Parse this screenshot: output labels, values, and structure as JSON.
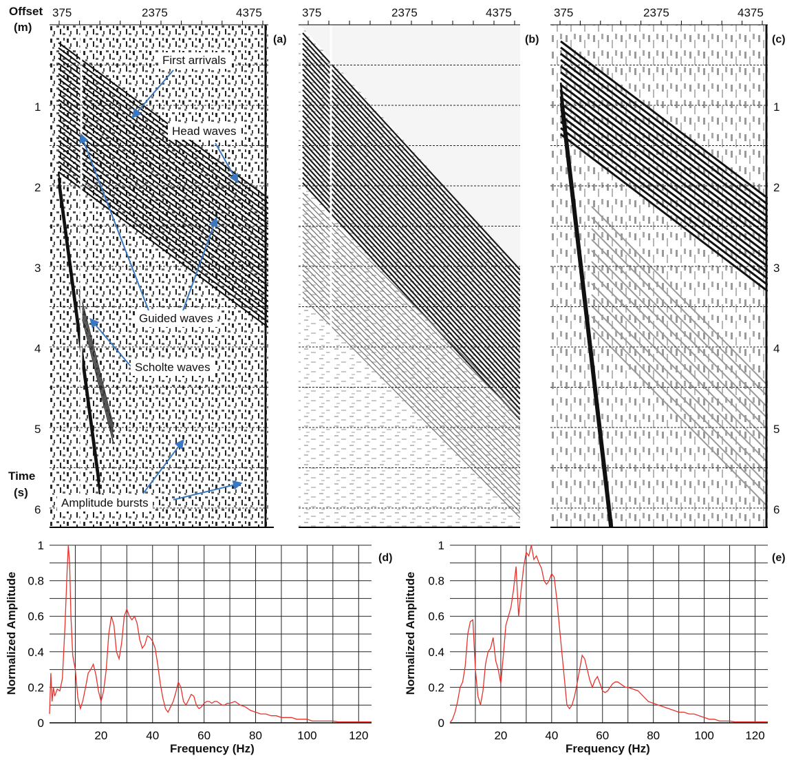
{
  "seismic": {
    "offset_label": [
      "Offset",
      "(m)"
    ],
    "time_label": [
      "Time",
      "(s)"
    ],
    "offset_ticks": [
      "375",
      "2375",
      "4375"
    ],
    "time_ticks": [
      "1",
      "2",
      "3",
      "4",
      "5",
      "6"
    ],
    "panels": [
      "(a)",
      "(b)",
      "(c)"
    ],
    "annotations": {
      "first_arrivals": "First arrivals",
      "head_waves": "Head waves",
      "guided_waves": "Guided waves",
      "scholte_waves": "Scholte waves",
      "amplitude_bursts": "Amplitude bursts"
    },
    "arrow_color": "#3a78c2"
  },
  "chart_data": [
    {
      "type": "line",
      "panel": "(d)",
      "xlabel": "Frequency (Hz)",
      "ylabel": "Normalized Amplitude",
      "xlim": [
        0,
        125
      ],
      "ylim": [
        0,
        1
      ],
      "xticks": [
        20,
        40,
        60,
        80,
        100,
        120
      ],
      "yticks": [
        0,
        0.2,
        0.4,
        0.6,
        0.8,
        1
      ],
      "ytick_labels": [
        "0",
        "0.2",
        "0.4",
        "0.6",
        "0.8",
        "1"
      ],
      "grid": true,
      "color": "#e8302a",
      "series": [
        {
          "x": [
            0,
            0.5,
            1,
            1.5,
            2,
            3,
            4,
            5,
            6,
            6.8,
            7.3,
            7.8,
            8.3,
            9,
            10,
            11,
            12,
            13,
            14,
            15,
            16,
            17,
            18,
            19,
            20,
            21,
            22,
            23,
            24,
            25,
            26,
            27,
            28,
            29,
            30,
            31,
            32,
            33,
            34,
            35,
            36,
            37,
            38,
            39,
            40,
            41,
            42,
            43,
            44,
            45,
            46,
            47,
            48,
            49,
            50,
            51,
            52,
            53,
            54,
            55,
            56,
            57,
            58,
            59,
            60,
            61,
            62,
            63,
            64,
            65,
            66,
            67,
            68,
            69,
            70,
            72,
            74,
            76,
            78,
            80,
            82,
            84,
            86,
            88,
            90,
            92,
            94,
            96,
            98,
            100,
            102,
            104,
            106,
            108,
            110,
            112,
            114,
            116,
            118,
            120,
            122,
            124,
            125
          ],
          "values": [
            0.05,
            0.28,
            0.12,
            0.2,
            0.15,
            0.19,
            0.18,
            0.25,
            0.55,
            0.85,
            1.0,
            0.9,
            0.6,
            0.38,
            0.3,
            0.14,
            0.08,
            0.13,
            0.2,
            0.28,
            0.3,
            0.33,
            0.27,
            0.18,
            0.12,
            0.18,
            0.3,
            0.5,
            0.6,
            0.55,
            0.4,
            0.36,
            0.45,
            0.6,
            0.64,
            0.6,
            0.58,
            0.6,
            0.56,
            0.47,
            0.42,
            0.44,
            0.49,
            0.48,
            0.46,
            0.42,
            0.33,
            0.22,
            0.14,
            0.08,
            0.06,
            0.09,
            0.12,
            0.17,
            0.23,
            0.2,
            0.12,
            0.1,
            0.13,
            0.16,
            0.15,
            0.1,
            0.08,
            0.09,
            0.11,
            0.12,
            0.12,
            0.11,
            0.12,
            0.12,
            0.11,
            0.1,
            0.1,
            0.11,
            0.11,
            0.12,
            0.1,
            0.09,
            0.07,
            0.06,
            0.05,
            0.05,
            0.04,
            0.04,
            0.03,
            0.03,
            0.03,
            0.02,
            0.02,
            0.02,
            0.01,
            0.01,
            0.01,
            0.01,
            0.01,
            0.005,
            0.005,
            0.005,
            0.005,
            0.005,
            0.005,
            0.005,
            0.005
          ]
        }
      ]
    },
    {
      "type": "line",
      "panel": "(e)",
      "xlabel": "Frequency (Hz)",
      "ylabel": "Normalized Amplitude",
      "xlim": [
        0,
        125
      ],
      "ylim": [
        0,
        1
      ],
      "xticks": [
        20,
        40,
        60,
        80,
        100,
        120
      ],
      "yticks": [
        0,
        0.2,
        0.4,
        0.6,
        0.8,
        1
      ],
      "ytick_labels": [
        "0",
        "0.2",
        "0.4",
        "0.6",
        "0.8",
        "1"
      ],
      "grid": true,
      "color": "#e8302a",
      "series": [
        {
          "x": [
            0,
            1,
            2,
            3,
            4,
            5,
            6,
            7,
            8,
            9,
            10,
            11,
            12,
            13,
            14,
            15,
            16,
            17,
            18,
            19,
            20,
            21,
            22,
            23,
            24,
            25,
            26,
            27,
            28,
            29,
            30,
            31,
            32,
            33,
            34,
            35,
            36,
            37,
            38,
            39,
            40,
            41,
            42,
            43,
            44,
            45,
            46,
            47,
            48,
            49,
            50,
            51,
            52,
            53,
            54,
            55,
            56,
            57,
            58,
            59,
            60,
            61,
            62,
            63,
            64,
            65,
            66,
            67,
            68,
            69,
            70,
            72,
            74,
            76,
            78,
            80,
            82,
            84,
            86,
            88,
            90,
            92,
            94,
            96,
            98,
            100,
            102,
            104,
            106,
            108,
            110,
            112,
            114,
            116,
            118,
            120,
            122,
            124,
            125
          ],
          "values": [
            0.0,
            0.02,
            0.06,
            0.12,
            0.2,
            0.23,
            0.32,
            0.5,
            0.57,
            0.58,
            0.3,
            0.15,
            0.1,
            0.18,
            0.33,
            0.4,
            0.42,
            0.48,
            0.35,
            0.3,
            0.22,
            0.38,
            0.55,
            0.6,
            0.65,
            0.75,
            0.88,
            0.6,
            0.75,
            0.88,
            0.96,
            0.94,
            1.0,
            0.92,
            0.94,
            0.9,
            0.87,
            0.8,
            0.78,
            0.8,
            0.84,
            0.82,
            0.7,
            0.55,
            0.4,
            0.25,
            0.1,
            0.08,
            0.1,
            0.15,
            0.22,
            0.3,
            0.38,
            0.36,
            0.3,
            0.24,
            0.2,
            0.24,
            0.26,
            0.22,
            0.18,
            0.17,
            0.18,
            0.2,
            0.22,
            0.23,
            0.23,
            0.22,
            0.21,
            0.2,
            0.2,
            0.19,
            0.18,
            0.15,
            0.12,
            0.11,
            0.1,
            0.09,
            0.08,
            0.07,
            0.06,
            0.06,
            0.05,
            0.05,
            0.04,
            0.03,
            0.02,
            0.02,
            0.01,
            0.01,
            0.01,
            0.005,
            0.005,
            0.005,
            0.005,
            0.005,
            0.005,
            0.005,
            0.005
          ]
        }
      ]
    }
  ]
}
